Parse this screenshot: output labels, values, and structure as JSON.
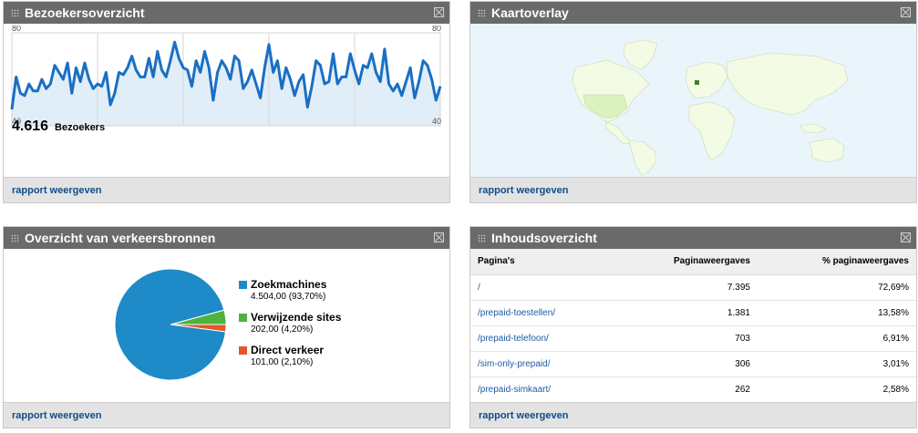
{
  "panels": {
    "visitors": {
      "title": "Bezoekersoverzicht",
      "total": "4.616",
      "total_label": "Bezoekers",
      "footer": "rapport weergeven"
    },
    "map": {
      "title": "Kaartoverlay",
      "footer": "rapport weergeven"
    },
    "traffic": {
      "title": "Overzicht van verkeersbronnen",
      "footer": "rapport weergeven",
      "sources": [
        {
          "label": "Zoekmachines",
          "value": "4.504,00 (93,70%)",
          "color": "#1e8ac8"
        },
        {
          "label": "Verwijzende sites",
          "value": "202,00 (4,20%)",
          "color": "#4cb33c"
        },
        {
          "label": "Direct verkeer",
          "value": "101,00 (2,10%)",
          "color": "#e2562a"
        }
      ]
    },
    "content": {
      "title": "Inhoudsoverzicht",
      "footer": "rapport weergeven",
      "headers": [
        "Pagina's",
        "Paginaweergaves",
        "% paginaweergaves"
      ],
      "rows": [
        [
          "/",
          "7.395",
          "72,69%"
        ],
        [
          "/prepaid-toestellen/",
          "1.381",
          "13,58%"
        ],
        [
          "/prepaid-telefoon/",
          "703",
          "6,91%"
        ],
        [
          "/sim-only-prepaid/",
          "306",
          "3,01%"
        ],
        [
          "/prepaid-simkaart/",
          "262",
          "2,58%"
        ]
      ]
    }
  },
  "chart_data": [
    {
      "type": "line",
      "y_tick_labels": [
        "80",
        "40"
      ],
      "ylim": [
        40,
        80
      ],
      "values": [
        47,
        61,
        54,
        53,
        58,
        55,
        55,
        60,
        56,
        58,
        66,
        63,
        60,
        67,
        54,
        65,
        59,
        67,
        60,
        56,
        58,
        57,
        63,
        49,
        54,
        63,
        62,
        65,
        70,
        64,
        61,
        61,
        69,
        61,
        72,
        64,
        61,
        68,
        76,
        69,
        65,
        64,
        57,
        68,
        63,
        72,
        65,
        51,
        63,
        68,
        65,
        60,
        70,
        68,
        56,
        59,
        64,
        58,
        52,
        65,
        75,
        63,
        68,
        56,
        65,
        60,
        53,
        59,
        62,
        48,
        57,
        68,
        66,
        58,
        59,
        71,
        58,
        61,
        61,
        71,
        64,
        58,
        66,
        65,
        71,
        63,
        59,
        73,
        58,
        55,
        58,
        53,
        59,
        65,
        52,
        59,
        68,
        66,
        60,
        51,
        57
      ],
      "line_color": "#1a6fc4",
      "fill_color": "#e1eef8"
    },
    {
      "type": "pie",
      "categories": [
        "Zoekmachines",
        "Verwijzende sites",
        "Direct verkeer"
      ],
      "values": [
        93.7,
        4.2,
        2.1
      ],
      "colors": [
        "#1e8ac8",
        "#4cb33c",
        "#e2562a"
      ]
    }
  ]
}
